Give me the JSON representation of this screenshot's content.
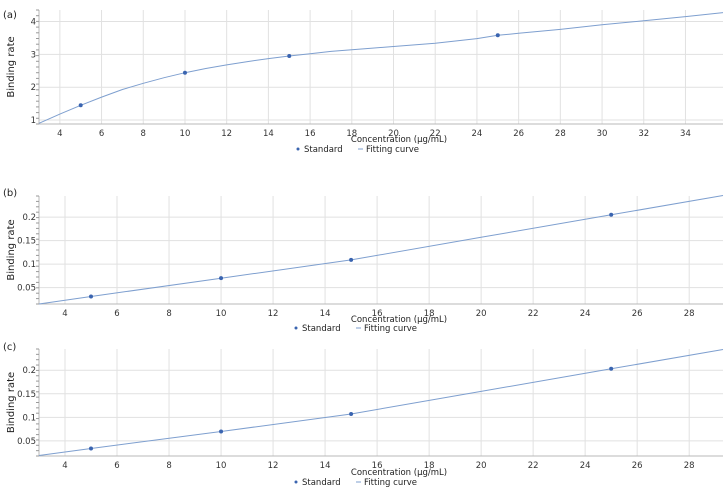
{
  "colors": {
    "standard": "#3a64b0",
    "fitting_curve": "#7e9fcf",
    "grid": "#e1e1e1"
  },
  "chart_data": [
    {
      "type": "scatter",
      "panel_label": "(a)",
      "xlabel": "Concentration (μg/mL)",
      "ylabel": "Binding rate",
      "xlim": [
        3,
        35.8
      ],
      "ylim": [
        0.88,
        4.35
      ],
      "xticks": [
        "4",
        "6",
        "8",
        "10",
        "12",
        "14",
        "16",
        "18",
        "20",
        "22",
        "24",
        "26",
        "28",
        "30",
        "32",
        "34"
      ],
      "yticks": [
        "1",
        "2",
        "3",
        "4"
      ],
      "grid": true,
      "legend": [
        "Standard",
        "Fitting curve"
      ],
      "legend_position": "bottom-center",
      "series": [
        {
          "name": "Standard",
          "x": [
            5,
            10,
            15,
            25
          ],
          "y": [
            1.45,
            2.44,
            2.95,
            3.58
          ]
        },
        {
          "name": "Fitting curve",
          "x": [
            3,
            4,
            5,
            6,
            7,
            8,
            9,
            10,
            11,
            12,
            13,
            14,
            15,
            16,
            17,
            18,
            19,
            20,
            22,
            24,
            25,
            26,
            28,
            30,
            32,
            34,
            35.8
          ],
          "y": [
            0.9,
            1.18,
            1.45,
            1.7,
            1.93,
            2.12,
            2.29,
            2.44,
            2.57,
            2.68,
            2.78,
            2.87,
            2.95,
            3.02,
            3.09,
            3.14,
            3.19,
            3.24,
            3.34,
            3.48,
            3.58,
            3.64,
            3.76,
            3.9,
            4.02,
            4.15,
            4.27
          ]
        }
      ]
    },
    {
      "type": "scatter",
      "panel_label": "(b)",
      "xlabel": "Concentration (μg/mL)",
      "ylabel": "Binding rate",
      "xlim": [
        3,
        29.3
      ],
      "ylim": [
        0.015,
        0.245
      ],
      "xticks": [
        "4",
        "6",
        "8",
        "10",
        "12",
        "14",
        "16",
        "18",
        "20",
        "22",
        "24",
        "26",
        "28"
      ],
      "yticks": [
        "0.05",
        "0.1",
        "0.15",
        "0.2"
      ],
      "grid": true,
      "legend": [
        "Standard",
        "Fitting curve"
      ],
      "legend_position": "bottom-center",
      "series": [
        {
          "name": "Standard",
          "x": [
            5,
            10,
            15,
            25
          ],
          "y": [
            0.031,
            0.07,
            0.109,
            0.205
          ]
        },
        {
          "name": "Fitting curve",
          "x": [
            3,
            5,
            10,
            15,
            20,
            25,
            29.3
          ],
          "y": [
            0.015,
            0.031,
            0.07,
            0.109,
            0.157,
            0.205,
            0.246
          ]
        }
      ]
    },
    {
      "type": "scatter",
      "panel_label": "(c)",
      "xlabel": "Concentration (μg/mL)",
      "ylabel": "Binding rate",
      "xlim": [
        3,
        29.3
      ],
      "ylim": [
        0.018,
        0.245
      ],
      "xticks": [
        "4",
        "6",
        "8",
        "10",
        "12",
        "14",
        "16",
        "18",
        "20",
        "22",
        "24",
        "26",
        "28"
      ],
      "yticks": [
        "0.05",
        "0.1",
        "0.15",
        "0.2"
      ],
      "grid": true,
      "legend": [
        "Standard",
        "Fitting curve"
      ],
      "legend_position": "bottom-center",
      "series": [
        {
          "name": "Standard",
          "x": [
            5,
            10,
            15,
            25
          ],
          "y": [
            0.034,
            0.07,
            0.107,
            0.203
          ]
        },
        {
          "name": "Fitting curve",
          "x": [
            3,
            5,
            10,
            15,
            20,
            25,
            29.3
          ],
          "y": [
            0.019,
            0.034,
            0.07,
            0.107,
            0.155,
            0.203,
            0.244
          ]
        }
      ]
    }
  ]
}
